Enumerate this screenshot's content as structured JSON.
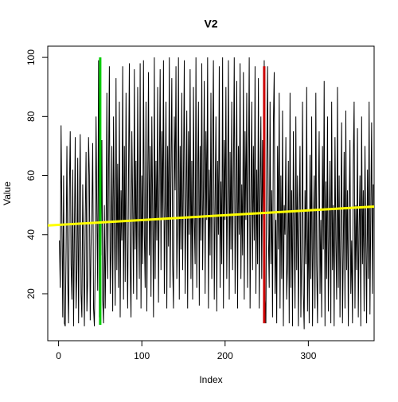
{
  "chart_data": {
    "type": "line",
    "title": "V2",
    "x_label": "Index",
    "y_label": "Value",
    "xlim": [
      -13,
      379
    ],
    "ylim": [
      4.1,
      103.8
    ],
    "xticks": [
      0,
      100,
      200,
      300
    ],
    "yticks": [
      20,
      40,
      60,
      80,
      100
    ],
    "series": [
      {
        "color": "#000000",
        "values": [
          38,
          22,
          77,
          45,
          12,
          60,
          10,
          9,
          35,
          70,
          24,
          10,
          55,
          75,
          30,
          18,
          62,
          9,
          40,
          73,
          15,
          28,
          66,
          10,
          50,
          74,
          20,
          12,
          57,
          33,
          9,
          45,
          68,
          14,
          25,
          73,
          60,
          11,
          36,
          48,
          71,
          15,
          9,
          30,
          80,
          47,
          21,
          99,
          12,
          45,
          33,
          72,
          18,
          10,
          50,
          15,
          40,
          88,
          25,
          60,
          97,
          20,
          35,
          70,
          14,
          80,
          45,
          16,
          93,
          28,
          64,
          22,
          85,
          12,
          55,
          38,
          97,
          18,
          70,
          24,
          88,
          40,
          15,
          60,
          98,
          30,
          12,
          75,
          50,
          20,
          96,
          35,
          65,
          18,
          90,
          45,
          25,
          98,
          15,
          60,
          30,
          99,
          40,
          22,
          85,
          14,
          55,
          95,
          33,
          70,
          19,
          80,
          48,
          12,
          100,
          25,
          65,
          38,
          90,
          17,
          58,
          96,
          28,
          75,
          45,
          99,
          20,
          50,
          85,
          15,
          70,
          36,
          100,
          22,
          60,
          93,
          30,
          15,
          80,
          55,
          97,
          25,
          45,
          100,
          18,
          70,
          35,
          88,
          28,
          60,
          99,
          20,
          50,
          82,
          15,
          75,
          40,
          96,
          25,
          65,
          18,
          90,
          45,
          30,
          100,
          22,
          58,
          85,
          16,
          70,
          38,
          98,
          28,
          55,
          92,
          20,
          75,
          45,
          100,
          15,
          62,
          33,
          88,
          25,
          70,
          99,
          18,
          50,
          80,
          14,
          65,
          40,
          97,
          22,
          58,
          30,
          100,
          15,
          72,
          45,
          90,
          25,
          55,
          99,
          18,
          68,
          35,
          85,
          28,
          60,
          100,
          20,
          48,
          92,
          15,
          70,
          40,
          98,
          25,
          57,
          33,
          95,
          18,
          75,
          45,
          88,
          22,
          60,
          100,
          15,
          50,
          85,
          28,
          70,
          38,
          97,
          20,
          62,
          30,
          93,
          15,
          55,
          80,
          25,
          72,
          45,
          99,
          18,
          10,
          65,
          97,
          40,
          22,
          85,
          30,
          55,
          12,
          78,
          95,
          20,
          45,
          10,
          70,
          35,
          88,
          15,
          60,
          25,
          82,
          9,
          50,
          40,
          73,
          18,
          30,
          65,
          10,
          88,
          22,
          55,
          9,
          75,
          40,
          15,
          80,
          28,
          60,
          9,
          45,
          70,
          12,
          35,
          85,
          20,
          8,
          55,
          30,
          90,
          14,
          48,
          10,
          67,
          25,
          80,
          9,
          40,
          60,
          15,
          88,
          30,
          10,
          52,
          75,
          20,
          45,
          12,
          70,
          35,
          92,
          9,
          58,
          25,
          80,
          14,
          40,
          65,
          10,
          85,
          28,
          50,
          9,
          73,
          38,
          18,
          90,
          22,
          60,
          12,
          45,
          78,
          10,
          35,
          68,
          15,
          82,
          28,
          55,
          9,
          48,
          72,
          20,
          38,
          10,
          65,
          85,
          15,
          50,
          28,
          76,
          12,
          42,
          60,
          9,
          80,
          30,
          55,
          14,
          70,
          38,
          10,
          62,
          25,
          85,
          13,
          48,
          78,
          20,
          57
        ]
      }
    ],
    "lines": [
      {
        "color": "#00cc00",
        "x": [
          50,
          50
        ],
        "y": [
          9.5,
          100
        ]
      },
      {
        "color": "#cc0000",
        "x": [
          247,
          247
        ],
        "y": [
          10,
          97
        ]
      },
      {
        "color": "#ffff00",
        "x": [
          -13,
          379
        ],
        "y": [
          43.1,
          49.5
        ]
      }
    ]
  }
}
